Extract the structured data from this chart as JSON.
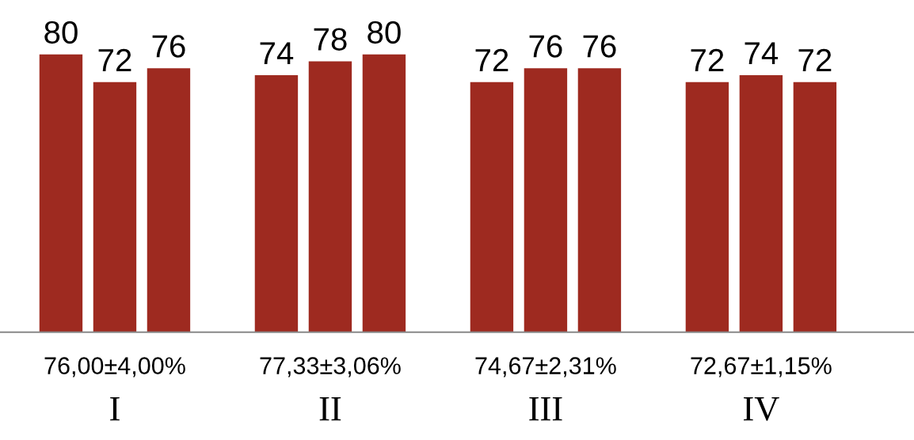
{
  "chart_data": {
    "type": "bar",
    "categories": [
      "I",
      "II",
      "III",
      "IV"
    ],
    "series": [
      {
        "color": "#9e2a20",
        "values": [
          80,
          74,
          72,
          72
        ]
      },
      {
        "color": "#9e2a20",
        "values": [
          72,
          78,
          76,
          74
        ]
      },
      {
        "color": "#9e2a20",
        "values": [
          76,
          80,
          76,
          72
        ]
      }
    ],
    "data_labels": true,
    "tick_labels": "x",
    "grid": false,
    "legend": false,
    "annotations": [
      "76,00±4,00%",
      "77,33±3,06%",
      "74,67±2,31%",
      "72,67±1,15%"
    ]
  }
}
